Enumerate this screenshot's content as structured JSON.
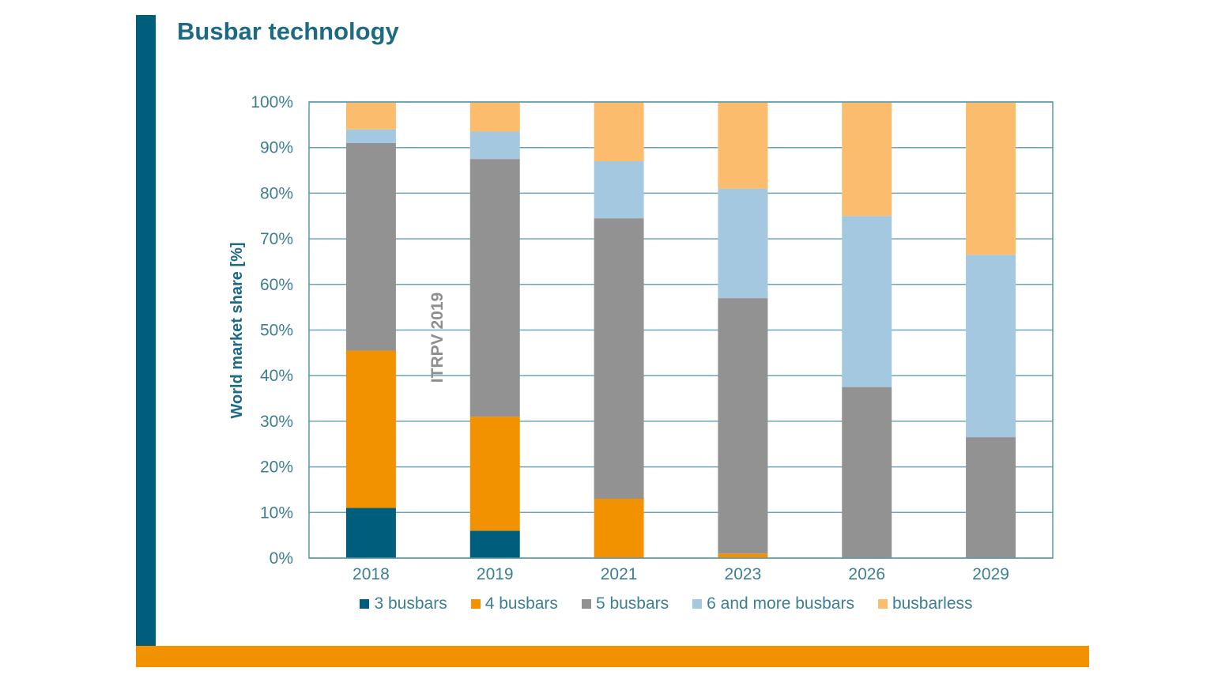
{
  "page": {
    "title": "Busbar technology"
  },
  "chart_data": {
    "type": "bar",
    "stacked": true,
    "title": "Busbar technology",
    "xlabel": "",
    "ylabel": "World market share [%]",
    "watermark": "ITRPV 2019",
    "ylim": [
      0,
      100
    ],
    "yticks": [
      "0%",
      "10%",
      "20%",
      "30%",
      "40%",
      "50%",
      "60%",
      "70%",
      "80%",
      "90%",
      "100%"
    ],
    "categories": [
      "2018",
      "2019",
      "2021",
      "2023",
      "2026",
      "2029"
    ],
    "series": [
      {
        "name": "3 busbars",
        "color": "#005e7d",
        "values": [
          11,
          6,
          0,
          0,
          0,
          0
        ]
      },
      {
        "name": "4 busbars",
        "color": "#f39200",
        "values": [
          34.5,
          25,
          13,
          1,
          0,
          0
        ]
      },
      {
        "name": "5 busbars",
        "color": "#929292",
        "values": [
          45.5,
          56.5,
          61.5,
          56,
          37.5,
          26.5
        ]
      },
      {
        "name": "6 and more busbars",
        "color": "#a3c8df",
        "values": [
          3,
          6,
          12.5,
          24,
          37.5,
          40
        ]
      },
      {
        "name": "busbarless",
        "color": "#fbbc6e",
        "values": [
          6,
          6.5,
          13,
          19,
          25,
          33.5
        ]
      }
    ],
    "grid": true,
    "legend": "bottom"
  }
}
